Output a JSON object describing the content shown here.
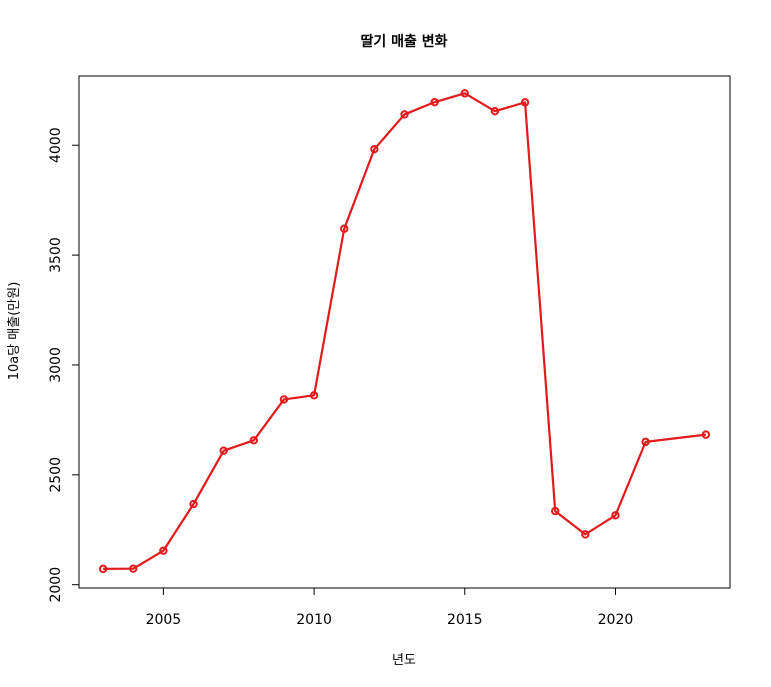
{
  "chart_data": {
    "type": "line",
    "title": "딸기 매출 변화",
    "xlabel": "년도",
    "ylabel": "10a당 매출(만원)",
    "x": [
      2003,
      2004,
      2005,
      2006,
      2007,
      2008,
      2009,
      2010,
      2011,
      2012,
      2013,
      2014,
      2015,
      2016,
      2017,
      2018,
      2019,
      2020,
      2021,
      2023
    ],
    "series": [
      {
        "values": [
          2072,
          2073,
          2155,
          2367,
          2610,
          2657,
          2843,
          2862,
          3620,
          3982,
          4140,
          4196,
          4236,
          4155,
          4195,
          2335,
          2229,
          2316,
          2650,
          2683
        ],
        "color": "#e31a1c"
      }
    ],
    "xticks": [
      "2005",
      "2010",
      "2015",
      "2020"
    ],
    "yticks": [
      "2000",
      "2500",
      "3000",
      "3500",
      "4000"
    ],
    "xlim": [
      2002.2,
      2023.8
    ],
    "ylim": [
      1985,
      4315
    ],
    "grid": false,
    "legend": "none"
  }
}
